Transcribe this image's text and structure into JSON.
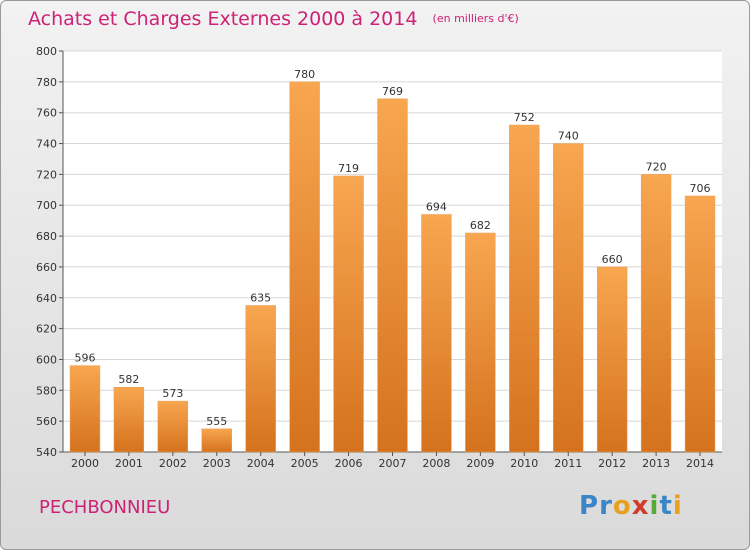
{
  "chart_data": {
    "type": "bar",
    "title": "Achats et Charges Externes 2000 à 2014",
    "unit_note": "(en milliers d'€)",
    "categories": [
      "2000",
      "2001",
      "2002",
      "2003",
      "2004",
      "2005",
      "2006",
      "2007",
      "2008",
      "2009",
      "2010",
      "2011",
      "2012",
      "2013",
      "2014"
    ],
    "values": [
      596,
      582,
      573,
      555,
      635,
      780,
      719,
      769,
      694,
      682,
      752,
      740,
      660,
      720,
      706
    ],
    "ylim": [
      540,
      800
    ],
    "yticks": [
      "540",
      "560",
      "580",
      "600",
      "620",
      "640",
      "660",
      "680",
      "700",
      "720",
      "740",
      "760",
      "780",
      "800"
    ],
    "grid": true,
    "bar_color": "#f0922e",
    "title_color": "#cc2277"
  },
  "footer": {
    "town": "PECHBONNIEU",
    "logo_letters": [
      {
        "ch": "P",
        "color": "#3a86c8"
      },
      {
        "ch": "r",
        "color": "#3a86c8"
      },
      {
        "ch": "o",
        "color": "#e8a020"
      },
      {
        "ch": "x",
        "color": "#d23c2a"
      },
      {
        "ch": "i",
        "color": "#5aa83a"
      },
      {
        "ch": "t",
        "color": "#3a86c8"
      },
      {
        "ch": "i",
        "color": "#e8a020"
      }
    ]
  }
}
